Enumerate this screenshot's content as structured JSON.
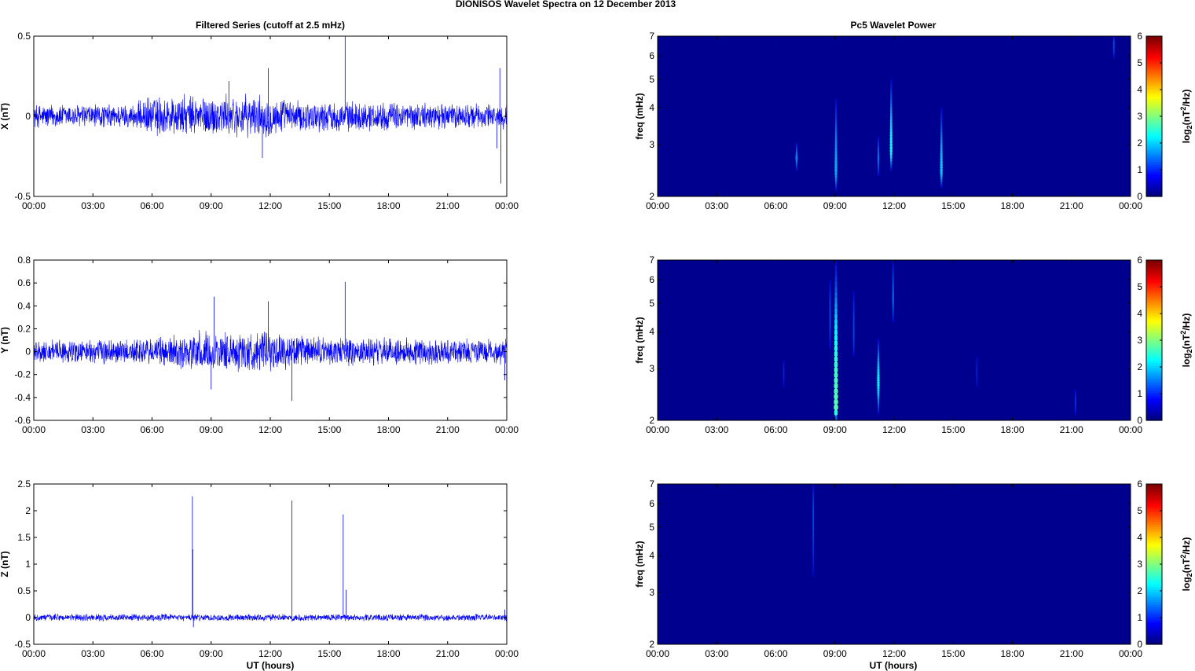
{
  "figure": {
    "suptitle": "DIONISOS Wavelet Spectra on 12 December  2013",
    "left_title": "Filtered Series (cutoff at 2.5 mHz)",
    "right_title": "Pc5 Wavelet Power",
    "xlabel": "UT (hours)",
    "freq_label": "freq (mHz)",
    "colorbar_label_main": "log",
    "colorbar_label_sub": "2",
    "colorbar_label_rest": "(nT",
    "colorbar_label_sup": "2",
    "colorbar_label_end": "/Hz)"
  },
  "colors": {
    "series_line": "#0000ff",
    "spectrum_background": "#00008f",
    "axis": "#000000"
  },
  "chart_data": [
    {
      "type": "line",
      "panel": "X",
      "ylabel": "X (nT)",
      "x_ticks": [
        "00:00",
        "03:00",
        "06:00",
        "09:00",
        "12:00",
        "15:00",
        "18:00",
        "21:00",
        "00:00"
      ],
      "xlim_hours": [
        0,
        24
      ],
      "ylim": [
        -0.5,
        0.5
      ],
      "y_ticks": [
        "-0.5",
        "0",
        "0.5"
      ],
      "y_tick_values": [
        -0.5,
        0,
        0.5
      ],
      "noise_envelope": [
        [
          0,
          0.07
        ],
        [
          5,
          0.07
        ],
        [
          6,
          0.12
        ],
        [
          9,
          0.12
        ],
        [
          12,
          0.12
        ],
        [
          13,
          0.09
        ],
        [
          24,
          0.07
        ]
      ],
      "spikes": [
        {
          "x_hours": 9.9,
          "y": 0.22
        },
        {
          "x_hours": 11.9,
          "y": 0.3
        },
        {
          "x_hours": 11.6,
          "y": -0.26
        },
        {
          "x_hours": 15.8,
          "y": 0.5
        },
        {
          "x_hours": 23.7,
          "y": -0.42
        },
        {
          "x_hours": 23.65,
          "y": 0.3
        },
        {
          "x_hours": 23.5,
          "y": -0.2
        }
      ]
    },
    {
      "type": "line",
      "panel": "Y",
      "ylabel": "Y (nT)",
      "x_ticks": [
        "00:00",
        "03:00",
        "06:00",
        "09:00",
        "12:00",
        "15:00",
        "18:00",
        "21:00",
        "00:00"
      ],
      "xlim_hours": [
        0,
        24
      ],
      "ylim": [
        -0.6,
        0.8
      ],
      "y_ticks": [
        "-0.6",
        "-0.4",
        "-0.2",
        "0",
        "0.2",
        "0.4",
        "0.6",
        "0.8"
      ],
      "y_tick_values": [
        -0.6,
        -0.4,
        -0.2,
        0,
        0.2,
        0.4,
        0.6,
        0.8
      ],
      "noise_envelope": [
        [
          0,
          0.09
        ],
        [
          6,
          0.11
        ],
        [
          8,
          0.16
        ],
        [
          12,
          0.16
        ],
        [
          14,
          0.12
        ],
        [
          24,
          0.1
        ]
      ],
      "spikes": [
        {
          "x_hours": 9.15,
          "y": 0.48
        },
        {
          "x_hours": 11.9,
          "y": 0.44
        },
        {
          "x_hours": 13.1,
          "y": -0.43
        },
        {
          "x_hours": 15.8,
          "y": 0.61
        },
        {
          "x_hours": 9.0,
          "y": -0.33
        },
        {
          "x_hours": 23.9,
          "y": -0.25
        }
      ]
    },
    {
      "type": "line",
      "panel": "Z",
      "ylabel": "Z (nT)",
      "x_ticks": [
        "00:00",
        "03:00",
        "06:00",
        "09:00",
        "12:00",
        "15:00",
        "18:00",
        "21:00",
        "00:00"
      ],
      "xlim_hours": [
        0,
        24
      ],
      "ylim": [
        -0.5,
        2.5
      ],
      "y_ticks": [
        "-0.5",
        "0",
        "0.5",
        "1",
        "1.5",
        "2",
        "2.5"
      ],
      "y_tick_values": [
        -0.5,
        0,
        0.5,
        1,
        1.5,
        2,
        2.5
      ],
      "noise_envelope": [
        [
          0,
          0.06
        ],
        [
          24,
          0.06
        ]
      ],
      "spikes": [
        {
          "x_hours": 8.05,
          "y": 2.27
        },
        {
          "x_hours": 8.07,
          "y": 1.28
        },
        {
          "x_hours": 8.1,
          "y": -0.18
        },
        {
          "x_hours": 13.1,
          "y": 2.19
        },
        {
          "x_hours": 15.7,
          "y": 1.93
        },
        {
          "x_hours": 15.85,
          "y": 0.52
        },
        {
          "x_hours": 23.9,
          "y": 0.15
        }
      ]
    },
    {
      "type": "heatmap",
      "panel": "X",
      "ylabel": "freq (mHz)",
      "x_ticks": [
        "00:00",
        "03:00",
        "06:00",
        "09:00",
        "12:00",
        "15:00",
        "18:00",
        "21:00",
        "00:00"
      ],
      "xlim_hours": [
        0,
        24
      ],
      "y_scale": "log",
      "ylim_mHz": [
        2,
        7
      ],
      "y_ticks": [
        "2",
        "3",
        "4",
        "5",
        "6",
        "7"
      ],
      "y_tick_values": [
        2,
        3,
        4,
        5,
        6,
        7
      ],
      "colorbar_ticks": [
        "0",
        "1",
        "2",
        "3",
        "4",
        "5",
        "6"
      ],
      "clim": [
        0,
        6
      ],
      "blobs": [
        {
          "x_hours": 7.05,
          "f_center": 2.7,
          "f_low": 2.45,
          "f_high": 3.05,
          "width_hours": 0.12,
          "peak": 1.3
        },
        {
          "x_hours": 9.05,
          "f_center": 2.45,
          "f_low": 2.1,
          "f_high": 4.3,
          "width_hours": 0.14,
          "peak": 1.6
        },
        {
          "x_hours": 11.2,
          "f_center": 2.7,
          "f_low": 2.35,
          "f_high": 3.2,
          "width_hours": 0.1,
          "peak": 1.2
        },
        {
          "x_hours": 11.85,
          "f_center": 2.9,
          "f_low": 2.45,
          "f_high": 5.0,
          "width_hours": 0.14,
          "peak": 2.1
        },
        {
          "x_hours": 14.4,
          "f_center": 2.45,
          "f_low": 2.15,
          "f_high": 4.0,
          "width_hours": 0.14,
          "peak": 1.8
        },
        {
          "x_hours": 23.15,
          "f_center": 6.6,
          "f_low": 5.9,
          "f_high": 7.0,
          "width_hours": 0.06,
          "peak": 0.9
        }
      ]
    },
    {
      "type": "heatmap",
      "panel": "Y",
      "ylabel": "freq (mHz)",
      "x_ticks": [
        "00:00",
        "03:00",
        "06:00",
        "09:00",
        "12:00",
        "15:00",
        "18:00",
        "21:00",
        "00:00"
      ],
      "xlim_hours": [
        0,
        24
      ],
      "y_scale": "log",
      "ylim_mHz": [
        2,
        7
      ],
      "y_ticks": [
        "2",
        "3",
        "4",
        "5",
        "6",
        "7"
      ],
      "y_tick_values": [
        2,
        3,
        4,
        5,
        6,
        7
      ],
      "colorbar_ticks": [
        "0",
        "1",
        "2",
        "3",
        "4",
        "5",
        "6"
      ],
      "clim": [
        0,
        6
      ],
      "blobs": [
        {
          "x_hours": 9.05,
          "f_center": 2.2,
          "f_low": 2.0,
          "f_high": 7.0,
          "width_hours": 0.22,
          "peak": 2.9
        },
        {
          "x_hours": 8.75,
          "f_center": 4.5,
          "f_low": 3.5,
          "f_high": 6.0,
          "width_hours": 0.06,
          "peak": 0.8
        },
        {
          "x_hours": 9.95,
          "f_center": 4.0,
          "f_low": 3.3,
          "f_high": 5.5,
          "width_hours": 0.08,
          "peak": 0.8
        },
        {
          "x_hours": 11.2,
          "f_center": 2.7,
          "f_low": 2.1,
          "f_high": 3.8,
          "width_hours": 0.14,
          "peak": 2.0
        },
        {
          "x_hours": 11.95,
          "f_center": 5.2,
          "f_low": 4.3,
          "f_high": 7.0,
          "width_hours": 0.1,
          "peak": 1.1
        },
        {
          "x_hours": 6.4,
          "f_center": 2.9,
          "f_low": 2.6,
          "f_high": 3.2,
          "width_hours": 0.06,
          "peak": 0.4
        },
        {
          "x_hours": 16.2,
          "f_center": 2.9,
          "f_low": 2.6,
          "f_high": 3.3,
          "width_hours": 0.06,
          "peak": 0.4
        },
        {
          "x_hours": 21.2,
          "f_center": 2.3,
          "f_low": 2.1,
          "f_high": 2.55,
          "width_hours": 0.07,
          "peak": 0.6
        }
      ]
    },
    {
      "type": "heatmap",
      "panel": "Z",
      "ylabel": "freq (mHz)",
      "x_ticks": [
        "00:00",
        "03:00",
        "06:00",
        "09:00",
        "12:00",
        "15:00",
        "18:00",
        "21:00",
        "00:00"
      ],
      "xlim_hours": [
        0,
        24
      ],
      "y_scale": "log",
      "ylim_mHz": [
        2,
        7
      ],
      "y_ticks": [
        "2",
        "3",
        "4",
        "5",
        "6",
        "7"
      ],
      "y_tick_values": [
        2,
        3,
        4,
        5,
        6,
        7
      ],
      "colorbar_ticks": [
        "0",
        "1",
        "2",
        "3",
        "4",
        "5",
        "6"
      ],
      "clim": [
        0,
        6
      ],
      "blobs": [
        {
          "x_hours": 7.9,
          "f_center": 5.5,
          "f_low": 3.4,
          "f_high": 7.0,
          "width_hours": 0.05,
          "peak": 0.8
        }
      ]
    }
  ]
}
